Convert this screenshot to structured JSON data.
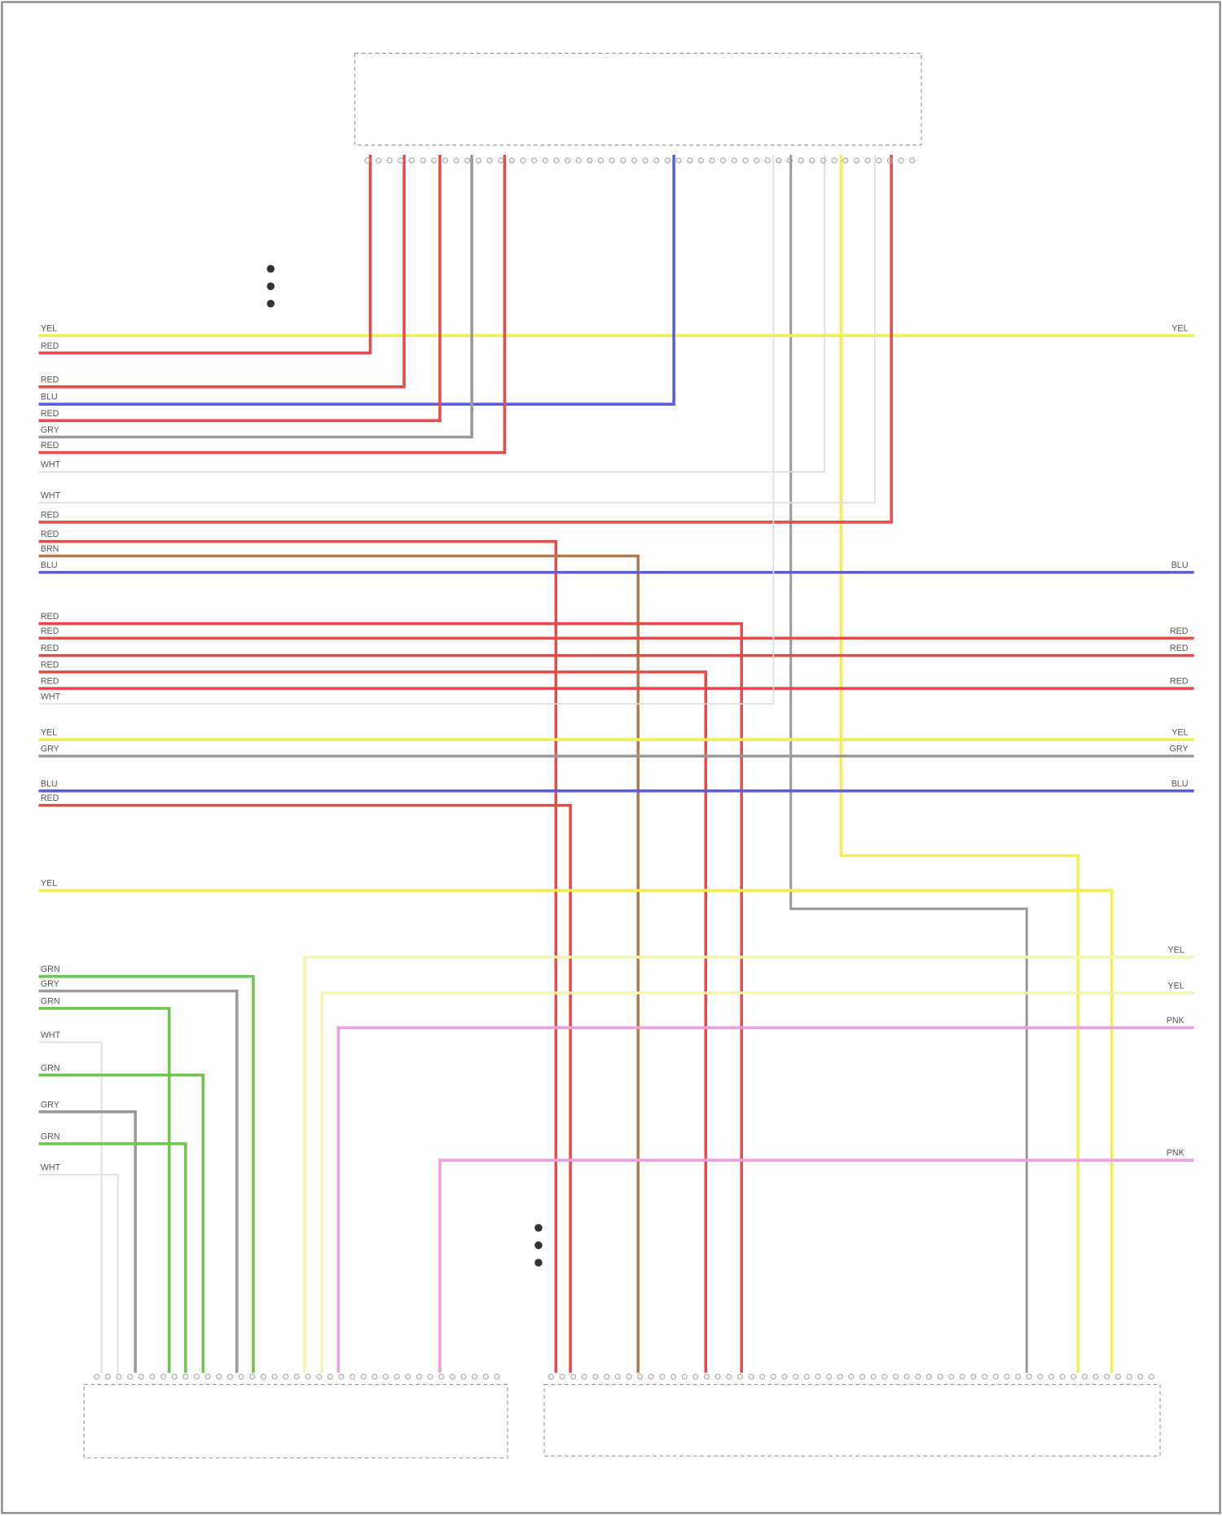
{
  "wires": [
    {
      "label": "YEL",
      "right_label": "YEL",
      "color": "#f2ee55"
    },
    {
      "label": "RED",
      "color": "#e84a4a"
    },
    {
      "label": "RED",
      "color": "#e84a4a"
    },
    {
      "label": "BLU",
      "color": "#5a5ae8"
    },
    {
      "label": "RED",
      "color": "#e84a4a"
    },
    {
      "label": "GRY",
      "color": "#9a9a9a"
    },
    {
      "label": "RED",
      "color": "#e84a4a"
    },
    {
      "label": "WHT",
      "color": "#dddddd"
    },
    {
      "label": "WHT",
      "color": "#dddddd"
    },
    {
      "label": "RED",
      "color": "#e84a4a"
    },
    {
      "label": "RED",
      "color": "#e84a4a"
    },
    {
      "label": "BRN",
      "color": "#b07a50"
    },
    {
      "label": "BLU",
      "right_label": "BLU",
      "color": "#5a5ae8"
    },
    {
      "label": "RED",
      "color": "#e84a4a"
    },
    {
      "label": "RED",
      "right_label": "RED",
      "color": "#e84a4a"
    },
    {
      "label": "RED",
      "right_label": "RED",
      "color": "#e84a4a"
    },
    {
      "label": "RED",
      "color": "#e84a4a"
    },
    {
      "label": "RED",
      "right_label": "RED",
      "color": "#e84a4a"
    },
    {
      "label": "WHT",
      "color": "#dddddd"
    },
    {
      "label": "YEL",
      "right_label": "YEL",
      "color": "#f2ee55"
    },
    {
      "label": "GRY",
      "right_label": "GRY",
      "color": "#9a9a9a"
    },
    {
      "label": "BLU",
      "right_label": "BLU",
      "color": "#5a5ae8"
    },
    {
      "label": "RED",
      "color": "#e84a4a"
    },
    {
      "label": "YEL",
      "color": "#f2ee55"
    },
    {
      "label": "GRN",
      "color": "#6cc84c"
    },
    {
      "label": "GRY",
      "color": "#9a9a9a"
    },
    {
      "label": "GRN",
      "color": "#6cc84c"
    },
    {
      "label": "WHT",
      "color": "#dddddd"
    },
    {
      "label": "GRN",
      "color": "#6cc84c"
    },
    {
      "label": "GRY",
      "color": "#9a9a9a"
    },
    {
      "label": "GRN",
      "color": "#6cc84c"
    },
    {
      "label": "WHT",
      "color": "#dddddd"
    },
    {
      "label": "YEL",
      "color": "#f6f4b0"
    },
    {
      "label": "YEL",
      "color": "#f6f4b0"
    },
    {
      "label": "PNK",
      "color": "#f0a0e0"
    },
    {
      "label": "PNK",
      "color": "#f0a0e0"
    }
  ]
}
